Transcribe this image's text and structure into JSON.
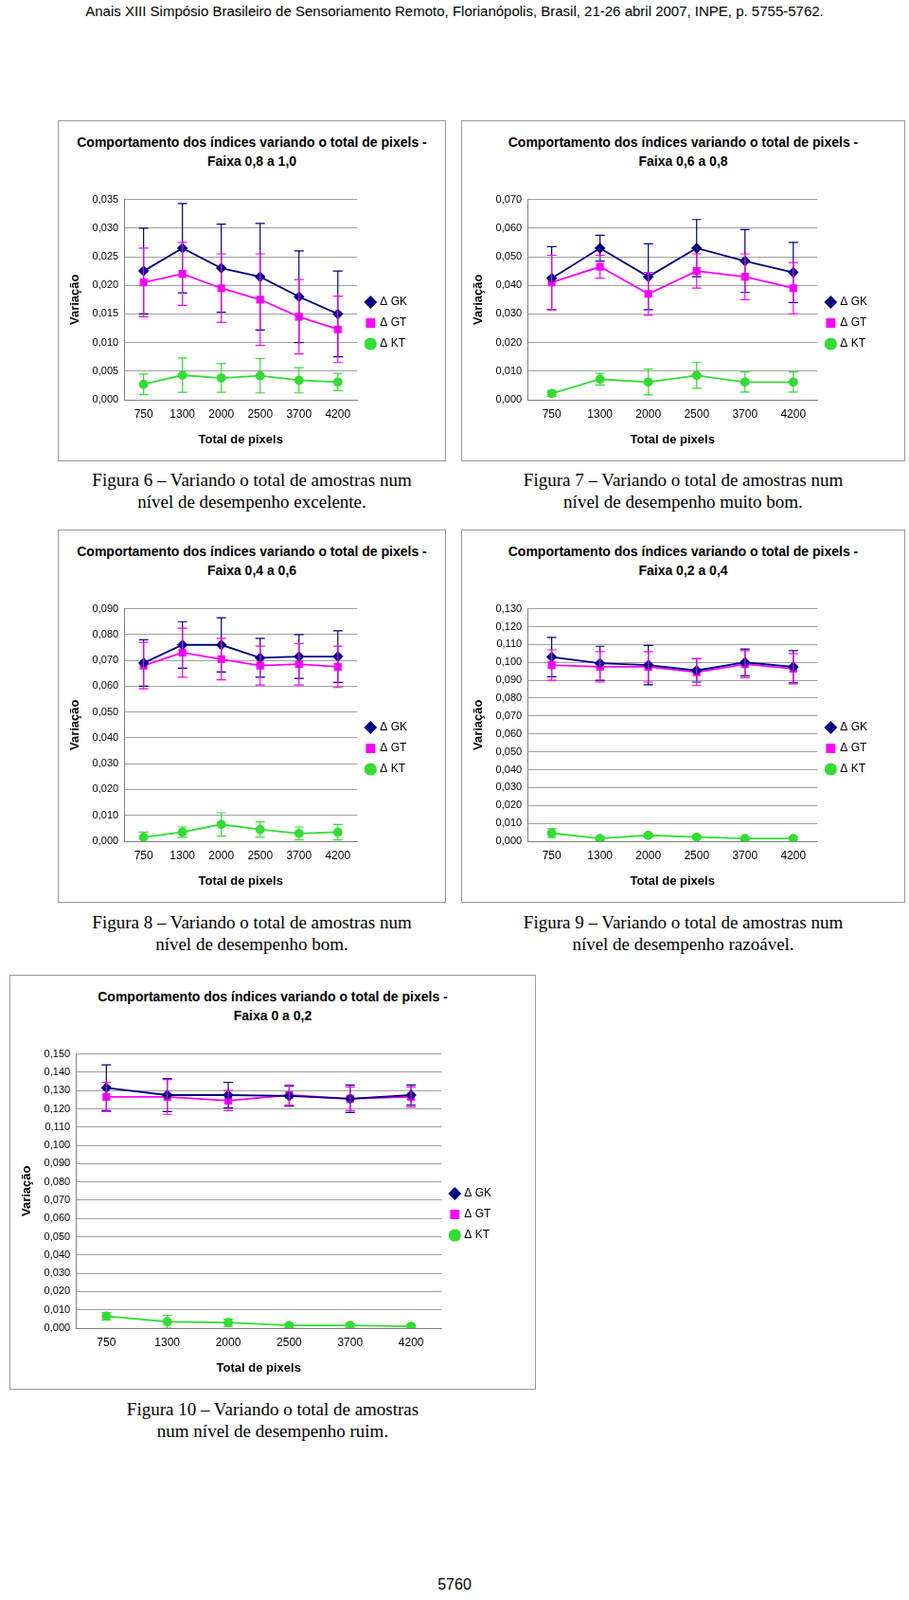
{
  "header": "Anais XIII Simpósio Brasileiro de Sensoriamento Remoto, Florianópolis, Brasil, 21-26 abril 2007, INPE, p. 5755-5762.",
  "page_number": "5760",
  "chart_data": [
    {
      "type": "line",
      "title": "Comportamento dos índices variando o total de pixels - Faixa 0,8 a 1,0",
      "caption": "Figura 6 – Variando o total de amostras num nível de desempenho excelente.",
      "x_label": "Total de pixels",
      "y_label": "Variação",
      "categories": [
        "750",
        "1300",
        "2000",
        "2500",
        "3700",
        "4200"
      ],
      "ylim": [
        0,
        0.035
      ],
      "yticks": [
        {
          "value": 0,
          "label": "0,000"
        },
        {
          "value": 0.005,
          "label": "0,005"
        },
        {
          "value": 0.01,
          "label": "0,010"
        },
        {
          "value": 0.015,
          "label": "0,015"
        },
        {
          "value": 0.02,
          "label": "0,020"
        },
        {
          "value": 0.025,
          "label": "0,025"
        },
        {
          "value": 0.03,
          "label": "0,030"
        },
        {
          "value": 0.035,
          "label": "0,035"
        }
      ],
      "grid": true,
      "legend": "right",
      "series": [
        {
          "name": "Δ GK",
          "color": "#000080",
          "marker": "diamond",
          "values": [
            0.0225,
            0.0265,
            0.023,
            0.0215,
            0.018,
            0.015
          ],
          "errors": [
            0.0075,
            0.0078,
            0.0077,
            0.0093,
            0.008,
            0.0075
          ]
        },
        {
          "name": "Δ GT",
          "color": "#ff00ff",
          "marker": "square",
          "values": [
            0.0205,
            0.022,
            0.0195,
            0.0175,
            0.0145,
            0.0123
          ],
          "errors": [
            0.006,
            0.0055,
            0.006,
            0.008,
            0.0065,
            0.0058
          ]
        },
        {
          "name": "Δ KT",
          "color": "#33dd33",
          "marker": "circle",
          "values": [
            0.0027,
            0.0043,
            0.0038,
            0.0042,
            0.0034,
            0.0031
          ],
          "errors": [
            0.0018,
            0.003,
            0.0025,
            0.003,
            0.0022,
            0.0015
          ]
        }
      ]
    },
    {
      "type": "line",
      "title": "Comportamento dos índices variando o total de pixels - Faixa 0,6 a 0,8",
      "caption": "Figura 7 – Variando o total de amostras num nível de desempenho muito bom.",
      "x_label": "Total de pixels",
      "y_label": "Variação",
      "categories": [
        "750",
        "1300",
        "2000",
        "2500",
        "3700",
        "4200"
      ],
      "ylim": [
        0,
        0.07
      ],
      "yticks": [
        {
          "value": 0,
          "label": "0,000"
        },
        {
          "value": 0.01,
          "label": "0,010"
        },
        {
          "value": 0.02,
          "label": "0,020"
        },
        {
          "value": 0.03,
          "label": "0,030"
        },
        {
          "value": 0.04,
          "label": "0,040"
        },
        {
          "value": 0.05,
          "label": "0,050"
        },
        {
          "value": 0.06,
          "label": "0,060"
        },
        {
          "value": 0.07,
          "label": "0,070"
        }
      ],
      "grid": true,
      "legend": "right",
      "series": [
        {
          "name": "Δ GK",
          "color": "#000080",
          "marker": "diamond",
          "values": [
            0.0425,
            0.053,
            0.043,
            0.053,
            0.0485,
            0.0445
          ],
          "errors": [
            0.011,
            0.0045,
            0.0115,
            0.01,
            0.011,
            0.0105
          ]
        },
        {
          "name": "Δ GT",
          "color": "#ff00ff",
          "marker": "square",
          "values": [
            0.041,
            0.0465,
            0.037,
            0.045,
            0.043,
            0.039
          ],
          "errors": [
            0.0095,
            0.004,
            0.0075,
            0.006,
            0.008,
            0.009
          ]
        },
        {
          "name": "Δ KT",
          "color": "#33dd33",
          "marker": "circle",
          "values": [
            0.0022,
            0.0072,
            0.0062,
            0.0085,
            0.0062,
            0.0062
          ],
          "errors": [
            0.001,
            0.002,
            0.0045,
            0.0045,
            0.0035,
            0.0035
          ]
        }
      ]
    },
    {
      "type": "line",
      "title": "Comportamento dos índices variando o total de pixels - Faixa 0,4 a 0,6",
      "caption": "Figura 8 – Variando o total de amostras num nível de desempenho bom.",
      "x_label": "Total de pixels",
      "y_label": "Variação",
      "categories": [
        "750",
        "1300",
        "2000",
        "2500",
        "3700",
        "4200"
      ],
      "ylim": [
        0,
        0.09
      ],
      "yticks": [
        {
          "value": 0,
          "label": "0,000"
        },
        {
          "value": 0.01,
          "label": "0,010"
        },
        {
          "value": 0.02,
          "label": "0,020"
        },
        {
          "value": 0.03,
          "label": "0,030"
        },
        {
          "value": 0.04,
          "label": "0,040"
        },
        {
          "value": 0.05,
          "label": "0,050"
        },
        {
          "value": 0.06,
          "label": "0,060"
        },
        {
          "value": 0.07,
          "label": "0,070"
        },
        {
          "value": 0.08,
          "label": "0,080"
        },
        {
          "value": 0.09,
          "label": "0,090"
        }
      ],
      "grid": true,
      "legend": "right",
      "series": [
        {
          "name": "Δ GK",
          "color": "#000080",
          "marker": "diamond",
          "values": [
            0.069,
            0.076,
            0.076,
            0.071,
            0.0715,
            0.0715
          ],
          "errors": [
            0.009,
            0.009,
            0.0105,
            0.0075,
            0.0085,
            0.01
          ]
        },
        {
          "name": "Δ GT",
          "color": "#ff00ff",
          "marker": "square",
          "values": [
            0.068,
            0.073,
            0.0705,
            0.068,
            0.0685,
            0.0675
          ],
          "errors": [
            0.009,
            0.0095,
            0.008,
            0.0075,
            0.008,
            0.008
          ]
        },
        {
          "name": "Δ KT",
          "color": "#33dd33",
          "marker": "circle",
          "values": [
            0.0015,
            0.0035,
            0.0065,
            0.0045,
            0.003,
            0.0035
          ],
          "errors": [
            0.002,
            0.002,
            0.0045,
            0.003,
            0.0025,
            0.003
          ]
        }
      ]
    },
    {
      "type": "line",
      "title": "Comportamento dos índices variando o total de pixels - Faixa 0,2 a 0,4",
      "caption": "Figura 9 – Variando o total de amostras num nível de desempenho razoável.",
      "x_label": "Total de pixels",
      "y_label": "Variação",
      "categories": [
        "750",
        "1300",
        "2000",
        "2500",
        "3700",
        "4200"
      ],
      "ylim": [
        0,
        0.13
      ],
      "yticks": [
        {
          "value": 0,
          "label": "0,000"
        },
        {
          "value": 0.01,
          "label": "0,010"
        },
        {
          "value": 0.02,
          "label": "0,020"
        },
        {
          "value": 0.03,
          "label": "0,030"
        },
        {
          "value": 0.04,
          "label": "0,040"
        },
        {
          "value": 0.05,
          "label": "0,050"
        },
        {
          "value": 0.06,
          "label": "0,060"
        },
        {
          "value": 0.07,
          "label": "0,070"
        },
        {
          "value": 0.08,
          "label": "0,080"
        },
        {
          "value": 0.09,
          "label": "0,090"
        },
        {
          "value": 0.1,
          "label": "0,100"
        },
        {
          "value": 0.11,
          "label": "0,110"
        },
        {
          "value": 0.12,
          "label": "0,120"
        },
        {
          "value": 0.13,
          "label": "0,130"
        }
      ],
      "grid": true,
      "legend": "right",
      "series": [
        {
          "name": "Δ GK",
          "color": "#000080",
          "marker": "diamond",
          "values": [
            0.103,
            0.0995,
            0.0985,
            0.0955,
            0.1,
            0.0975
          ],
          "errors": [
            0.011,
            0.0095,
            0.011,
            0.0065,
            0.0075,
            0.009
          ]
        },
        {
          "name": "Δ GT",
          "color": "#ff00ff",
          "marker": "square",
          "values": [
            0.0985,
            0.0975,
            0.0975,
            0.0945,
            0.099,
            0.0965
          ],
          "errors": [
            0.0085,
            0.0085,
            0.0085,
            0.0075,
            0.0075,
            0.0085
          ]
        },
        {
          "name": "Δ KT",
          "color": "#33dd33",
          "marker": "circle",
          "values": [
            0.0045,
            0.0015,
            0.0033,
            0.0023,
            0.0015,
            0.0015
          ],
          "errors": [
            0.0025,
            0.001,
            0.001,
            0.0008,
            0.0008,
            0.0008
          ]
        }
      ]
    },
    {
      "type": "line",
      "title": "Comportamento dos índices variando o total de pixels - Faixa 0 a 0,2",
      "caption": "Figura 10 – Variando o total de amostras num nível de desempenho ruim.",
      "x_label": "Total de pixels",
      "y_label": "Variação",
      "categories": [
        "750",
        "1300",
        "2000",
        "2500",
        "3700",
        "4200"
      ],
      "ylim": [
        0,
        0.15
      ],
      "yticks": [
        {
          "value": 0,
          "label": "0,000"
        },
        {
          "value": 0.01,
          "label": "0,010"
        },
        {
          "value": 0.02,
          "label": "0,020"
        },
        {
          "value": 0.03,
          "label": "0,030"
        },
        {
          "value": 0.04,
          "label": "0,040"
        },
        {
          "value": 0.05,
          "label": "0,050"
        },
        {
          "value": 0.06,
          "label": "0,060"
        },
        {
          "value": 0.07,
          "label": "0,070"
        },
        {
          "value": 0.08,
          "label": "0,080"
        },
        {
          "value": 0.09,
          "label": "0,090"
        },
        {
          "value": 0.1,
          "label": "0,100"
        },
        {
          "value": 0.11,
          "label": "0,110"
        },
        {
          "value": 0.12,
          "label": "0,120"
        },
        {
          "value": 0.13,
          "label": "0,130"
        },
        {
          "value": 0.14,
          "label": "0,140"
        },
        {
          "value": 0.15,
          "label": "0,150"
        }
      ],
      "grid": true,
      "legend": "right",
      "series": [
        {
          "name": "Δ GK",
          "color": "#000080",
          "marker": "diamond",
          "values": [
            0.1315,
            0.1275,
            0.1275,
            0.127,
            0.1255,
            0.1275
          ],
          "errors": [
            0.0125,
            0.009,
            0.007,
            0.0055,
            0.0075,
            0.0055
          ]
        },
        {
          "name": "Δ GT",
          "color": "#ff00ff",
          "marker": "square",
          "values": [
            0.1265,
            0.1265,
            0.1245,
            0.1275,
            0.1255,
            0.1265
          ],
          "errors": [
            0.008,
            0.0095,
            0.0055,
            0.0055,
            0.0065,
            0.0055
          ]
        },
        {
          "name": "Δ KT",
          "color": "#33dd33",
          "marker": "circle",
          "values": [
            0.0065,
            0.0035,
            0.003,
            0.0015,
            0.0015,
            0.001
          ],
          "errors": [
            0.002,
            0.0035,
            0.002,
            0.001,
            0.001,
            0.0008
          ]
        }
      ]
    }
  ]
}
